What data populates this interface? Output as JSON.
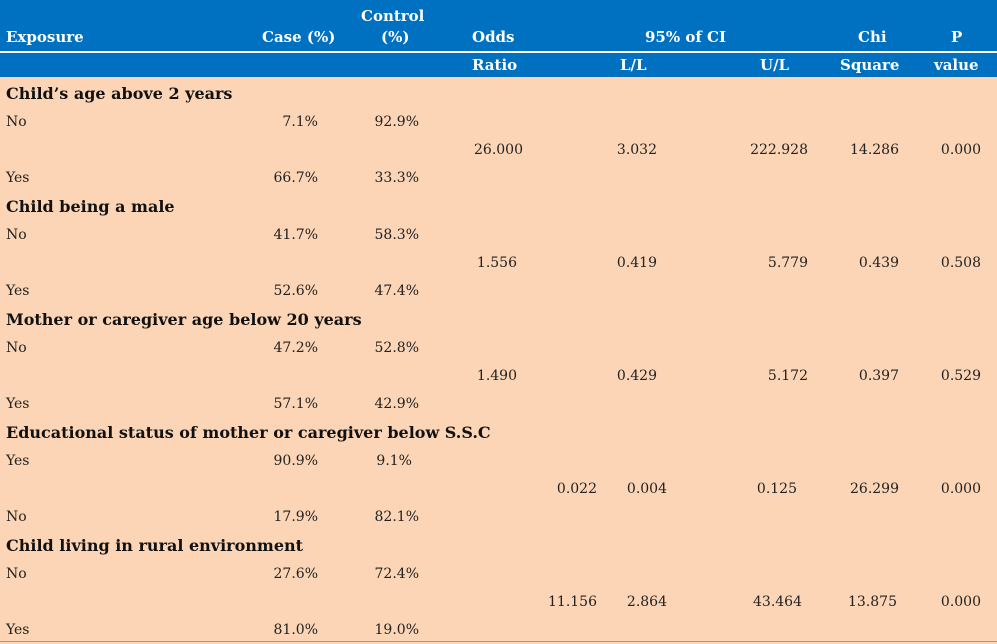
{
  "header": {
    "exposure": "Exposure",
    "case": "Case (%)",
    "control_line1": "Control",
    "control_line2": "(%)",
    "odds": "Odds",
    "ci": "95% of CI",
    "chi": "Chi",
    "p": "P",
    "ratio": "Ratio",
    "ll": "L/L",
    "ul": "U/L",
    "square": "Square",
    "value": "value"
  },
  "sections": [
    {
      "title": "Child’s age above 2 years",
      "row1": {
        "label": "No",
        "case": "7.1%",
        "control": "92.9%"
      },
      "stats": {
        "odds": "26.000",
        "ll": "3.032",
        "ul": "222.928",
        "chi": "14.286",
        "p": "0.000"
      },
      "row2": {
        "label": "Yes",
        "case": "66.7%",
        "control": "33.3%"
      }
    },
    {
      "title": "Child being a male",
      "row1": {
        "label": "No",
        "case": "41.7%",
        "control": "58.3%"
      },
      "stats": {
        "odds": "1.556",
        "ll": "0.419",
        "ul": "5.779",
        "chi": "0.439",
        "p": "0.508"
      },
      "row2": {
        "label": "Yes",
        "case": "52.6%",
        "control": "47.4%"
      }
    },
    {
      "title": "Mother or caregiver age below 20 years",
      "row1": {
        "label": "No",
        "case": "47.2%",
        "control": "52.8%"
      },
      "stats": {
        "odds": "1.490",
        "ll": "0.429",
        "ul": "5.172",
        "chi": "0.397",
        "p": "0.529"
      },
      "row2": {
        "label": "Yes",
        "case": "57.1%",
        "control": "42.9%"
      }
    },
    {
      "title": "Educational status of  mother or caregiver below S.S.C",
      "row1": {
        "label": "Yes",
        "case": "90.9%",
        "control": "9.1%"
      },
      "stats": {
        "odds": "0.022",
        "ll": "0.004",
        "ul": "0.125",
        "chi": "26.299",
        "p": "0.000"
      },
      "row2": {
        "label": "No",
        "case": "17.9%",
        "control": "82.1%"
      }
    },
    {
      "title": "Child   living in rural environment",
      "row1": {
        "label": "No",
        "case": "27.6%",
        "control": "72.4%"
      },
      "stats": {
        "odds": "11.156",
        "ll": "2.864",
        "ul": "43.464",
        "chi": "13.875",
        "p": "0.000"
      },
      "row2": {
        "label": "Yes",
        "case": "81.0%",
        "control": "19.0%"
      }
    }
  ]
}
